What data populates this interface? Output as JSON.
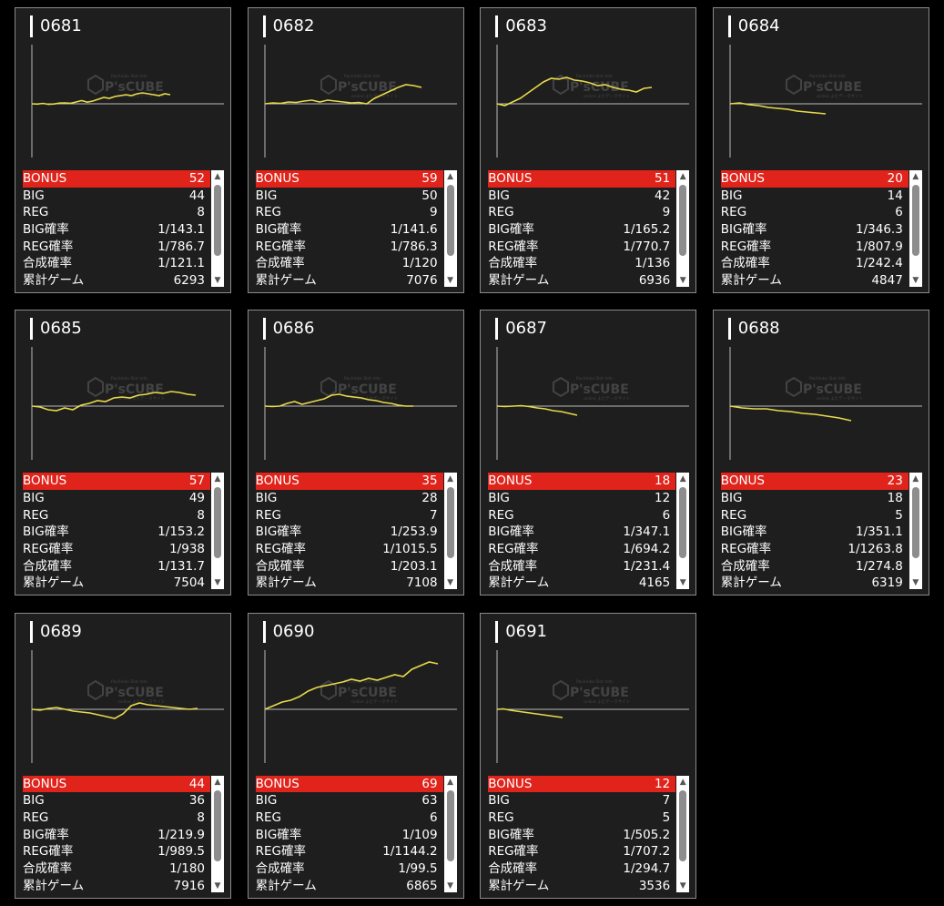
{
  "labels": {
    "bonus": "BONUS",
    "big": "BIG",
    "reg": "REG",
    "big_rate": "BIG確率",
    "reg_rate": "REG確率",
    "combined_rate": "合成確率",
    "total_games": "累計ゲーム"
  },
  "watermark": {
    "brand": "P'sCUBE",
    "top": "Pachinko Slot Info",
    "bottom": "online よむデータサイト"
  },
  "colors": {
    "bonus_bar": "#e0241b",
    "line": "#e8da4a",
    "baseline": "#bbbbbb",
    "card_bg": "#1e1e1e"
  },
  "icons": {
    "scroll_up": "triangle-up-icon",
    "scroll_down": "triangle-down-icon"
  },
  "machines": [
    {
      "id": "0681",
      "bonus": "52",
      "big": "44",
      "reg": "8",
      "big_rate": "1/143.1",
      "reg_rate": "1/786.7",
      "combined_rate": "1/121.1",
      "total_games": "6293",
      "graph": [
        [
          0,
          0
        ],
        [
          0.04,
          0.3
        ],
        [
          0.08,
          -0.5
        ],
        [
          0.12,
          0.6
        ],
        [
          0.16,
          0.2
        ],
        [
          0.2,
          -0.8
        ],
        [
          0.24,
          -1
        ],
        [
          0.28,
          -0.6
        ],
        [
          0.32,
          -2
        ],
        [
          0.36,
          -3.5
        ],
        [
          0.4,
          -1.8
        ],
        [
          0.44,
          -3
        ],
        [
          0.48,
          -5
        ],
        [
          0.52,
          -7
        ],
        [
          0.56,
          -6
        ],
        [
          0.6,
          -8
        ],
        [
          0.64,
          -9
        ],
        [
          0.68,
          -10
        ],
        [
          0.72,
          -9
        ],
        [
          0.76,
          -11
        ],
        [
          0.8,
          -12
        ],
        [
          0.84,
          -11
        ],
        [
          0.88,
          -10
        ],
        [
          0.92,
          -9
        ],
        [
          0.96,
          -11
        ],
        [
          1.0,
          -10
        ]
      ]
    },
    {
      "id": "0682",
      "bonus": "59",
      "big": "50",
      "reg": "9",
      "big_rate": "1/141.6",
      "reg_rate": "1/786.3",
      "combined_rate": "1/120",
      "total_games": "7076",
      "graph": [
        [
          0,
          0
        ],
        [
          0.05,
          -1
        ],
        [
          0.1,
          -0.5
        ],
        [
          0.15,
          -2
        ],
        [
          0.2,
          -1.5
        ],
        [
          0.25,
          -3
        ],
        [
          0.3,
          -4
        ],
        [
          0.35,
          -2
        ],
        [
          0.4,
          -4
        ],
        [
          0.45,
          -3
        ],
        [
          0.5,
          -2
        ],
        [
          0.55,
          -1
        ],
        [
          0.6,
          -1.5
        ],
        [
          0.65,
          0
        ],
        [
          0.7,
          -6
        ],
        [
          0.75,
          -10
        ],
        [
          0.8,
          -14
        ],
        [
          0.85,
          -18
        ],
        [
          0.9,
          -21
        ],
        [
          0.95,
          -20
        ],
        [
          1.0,
          -18
        ]
      ]
    },
    {
      "id": "0683",
      "bonus": "51",
      "big": "42",
      "reg": "9",
      "big_rate": "1/165.2",
      "reg_rate": "1/770.7",
      "combined_rate": "1/136",
      "total_games": "6936",
      "graph": [
        [
          0,
          0
        ],
        [
          0.05,
          2
        ],
        [
          0.1,
          -2
        ],
        [
          0.15,
          -6
        ],
        [
          0.2,
          -12
        ],
        [
          0.25,
          -18
        ],
        [
          0.3,
          -24
        ],
        [
          0.35,
          -28
        ],
        [
          0.4,
          -27
        ],
        [
          0.45,
          -29
        ],
        [
          0.5,
          -26
        ],
        [
          0.55,
          -25
        ],
        [
          0.6,
          -23
        ],
        [
          0.65,
          -20
        ],
        [
          0.7,
          -21
        ],
        [
          0.75,
          -18
        ],
        [
          0.8,
          -16
        ],
        [
          0.85,
          -15
        ],
        [
          0.9,
          -13
        ],
        [
          0.95,
          -17
        ],
        [
          1.0,
          -18
        ]
      ]
    },
    {
      "id": "0684",
      "bonus": "20",
      "big": "14",
      "reg": "6",
      "big_rate": "1/346.3",
      "reg_rate": "1/807.9",
      "combined_rate": "1/242.4",
      "total_games": "4847",
      "graph": [
        [
          0,
          0
        ],
        [
          0.1,
          -1
        ],
        [
          0.2,
          1
        ],
        [
          0.3,
          2
        ],
        [
          0.4,
          4
        ],
        [
          0.5,
          5
        ],
        [
          0.6,
          6
        ],
        [
          0.7,
          8
        ],
        [
          0.8,
          9
        ],
        [
          0.9,
          10
        ],
        [
          1.0,
          11
        ]
      ]
    },
    {
      "id": "0685",
      "bonus": "57",
      "big": "49",
      "reg": "8",
      "big_rate": "1/153.2",
      "reg_rate": "1/938",
      "combined_rate": "1/131.7",
      "total_games": "7504",
      "graph": [
        [
          0,
          0
        ],
        [
          0.05,
          1
        ],
        [
          0.1,
          4
        ],
        [
          0.15,
          5
        ],
        [
          0.2,
          2
        ],
        [
          0.25,
          4
        ],
        [
          0.3,
          -1
        ],
        [
          0.35,
          -3
        ],
        [
          0.4,
          -6
        ],
        [
          0.45,
          -5
        ],
        [
          0.5,
          -9
        ],
        [
          0.55,
          -10
        ],
        [
          0.6,
          -9
        ],
        [
          0.65,
          -12
        ],
        [
          0.7,
          -13
        ],
        [
          0.75,
          -15
        ],
        [
          0.8,
          -14
        ],
        [
          0.85,
          -16
        ],
        [
          0.9,
          -15
        ],
        [
          0.95,
          -13
        ],
        [
          1.0,
          -12
        ]
      ]
    },
    {
      "id": "0686",
      "bonus": "35",
      "big": "28",
      "reg": "7",
      "big_rate": "1/253.9",
      "reg_rate": "1/1015.5",
      "combined_rate": "1/203.1",
      "total_games": "7108",
      "graph": [
        [
          0,
          0
        ],
        [
          0.05,
          0.5
        ],
        [
          0.1,
          0
        ],
        [
          0.15,
          -3
        ],
        [
          0.2,
          -5
        ],
        [
          0.25,
          -2
        ],
        [
          0.3,
          -4
        ],
        [
          0.35,
          -6
        ],
        [
          0.4,
          -8
        ],
        [
          0.45,
          -12
        ],
        [
          0.5,
          -13
        ],
        [
          0.55,
          -11
        ],
        [
          0.6,
          -10
        ],
        [
          0.65,
          -9
        ],
        [
          0.7,
          -7
        ],
        [
          0.75,
          -6
        ],
        [
          0.8,
          -4
        ],
        [
          0.85,
          -3
        ],
        [
          0.9,
          -1
        ],
        [
          0.95,
          0
        ],
        [
          1.0,
          0
        ]
      ]
    },
    {
      "id": "0687",
      "bonus": "18",
      "big": "12",
      "reg": "6",
      "big_rate": "1/347.1",
      "reg_rate": "1/694.2",
      "combined_rate": "1/231.4",
      "total_games": "4165",
      "graph": [
        [
          0,
          0
        ],
        [
          0.1,
          0.5
        ],
        [
          0.2,
          0
        ],
        [
          0.3,
          -0.5
        ],
        [
          0.4,
          0.5
        ],
        [
          0.5,
          2
        ],
        [
          0.6,
          3
        ],
        [
          0.7,
          5
        ],
        [
          0.8,
          6
        ],
        [
          0.9,
          8
        ],
        [
          1.0,
          10
        ]
      ]
    },
    {
      "id": "0688",
      "bonus": "23",
      "big": "18",
      "reg": "5",
      "big_rate": "1/351.1",
      "reg_rate": "1/1263.8",
      "combined_rate": "1/274.8",
      "total_games": "6319",
      "graph": [
        [
          0,
          0
        ],
        [
          0.1,
          2
        ],
        [
          0.2,
          3
        ],
        [
          0.3,
          3
        ],
        [
          0.4,
          5
        ],
        [
          0.5,
          6
        ],
        [
          0.6,
          8
        ],
        [
          0.7,
          9
        ],
        [
          0.8,
          11
        ],
        [
          0.9,
          13
        ],
        [
          1.0,
          16
        ]
      ]
    },
    {
      "id": "0689",
      "bonus": "44",
      "big": "36",
      "reg": "8",
      "big_rate": "1/219.9",
      "reg_rate": "1/989.5",
      "combined_rate": "1/180",
      "total_games": "7916",
      "graph": [
        [
          0,
          0
        ],
        [
          0.05,
          1
        ],
        [
          0.1,
          -1
        ],
        [
          0.15,
          -2
        ],
        [
          0.2,
          0
        ],
        [
          0.25,
          2
        ],
        [
          0.3,
          3
        ],
        [
          0.35,
          4
        ],
        [
          0.4,
          6
        ],
        [
          0.45,
          8
        ],
        [
          0.5,
          10
        ],
        [
          0.55,
          5
        ],
        [
          0.6,
          -4
        ],
        [
          0.65,
          -7
        ],
        [
          0.7,
          -5
        ],
        [
          0.75,
          -4
        ],
        [
          0.8,
          -3
        ],
        [
          0.85,
          -2
        ],
        [
          0.9,
          -1
        ],
        [
          0.95,
          0
        ],
        [
          1.0,
          -1
        ]
      ]
    },
    {
      "id": "0690",
      "bonus": "69",
      "big": "63",
      "reg": "6",
      "big_rate": "1/109",
      "reg_rate": "1/1144.2",
      "combined_rate": "1/99.5",
      "total_games": "6865",
      "graph": [
        [
          0,
          0
        ],
        [
          0.05,
          -4
        ],
        [
          0.1,
          -8
        ],
        [
          0.15,
          -10
        ],
        [
          0.2,
          -14
        ],
        [
          0.25,
          -20
        ],
        [
          0.3,
          -24
        ],
        [
          0.35,
          -26
        ],
        [
          0.4,
          -28
        ],
        [
          0.45,
          -30
        ],
        [
          0.5,
          -33
        ],
        [
          0.55,
          -31
        ],
        [
          0.6,
          -34
        ],
        [
          0.65,
          -32
        ],
        [
          0.7,
          -35
        ],
        [
          0.75,
          -38
        ],
        [
          0.8,
          -36
        ],
        [
          0.85,
          -44
        ],
        [
          0.9,
          -48
        ],
        [
          0.95,
          -52
        ],
        [
          1.0,
          -50
        ]
      ]
    },
    {
      "id": "0691",
      "bonus": "12",
      "big": "7",
      "reg": "5",
      "big_rate": "1/505.2",
      "reg_rate": "1/707.2",
      "combined_rate": "1/294.7",
      "total_games": "3536",
      "graph": [
        [
          0,
          0
        ],
        [
          0.1,
          -0.5
        ],
        [
          0.2,
          1
        ],
        [
          0.3,
          2
        ],
        [
          0.4,
          3
        ],
        [
          0.5,
          4
        ],
        [
          0.6,
          5
        ],
        [
          0.7,
          6
        ],
        [
          0.8,
          7
        ],
        [
          0.9,
          8
        ],
        [
          1.0,
          9
        ]
      ]
    }
  ]
}
